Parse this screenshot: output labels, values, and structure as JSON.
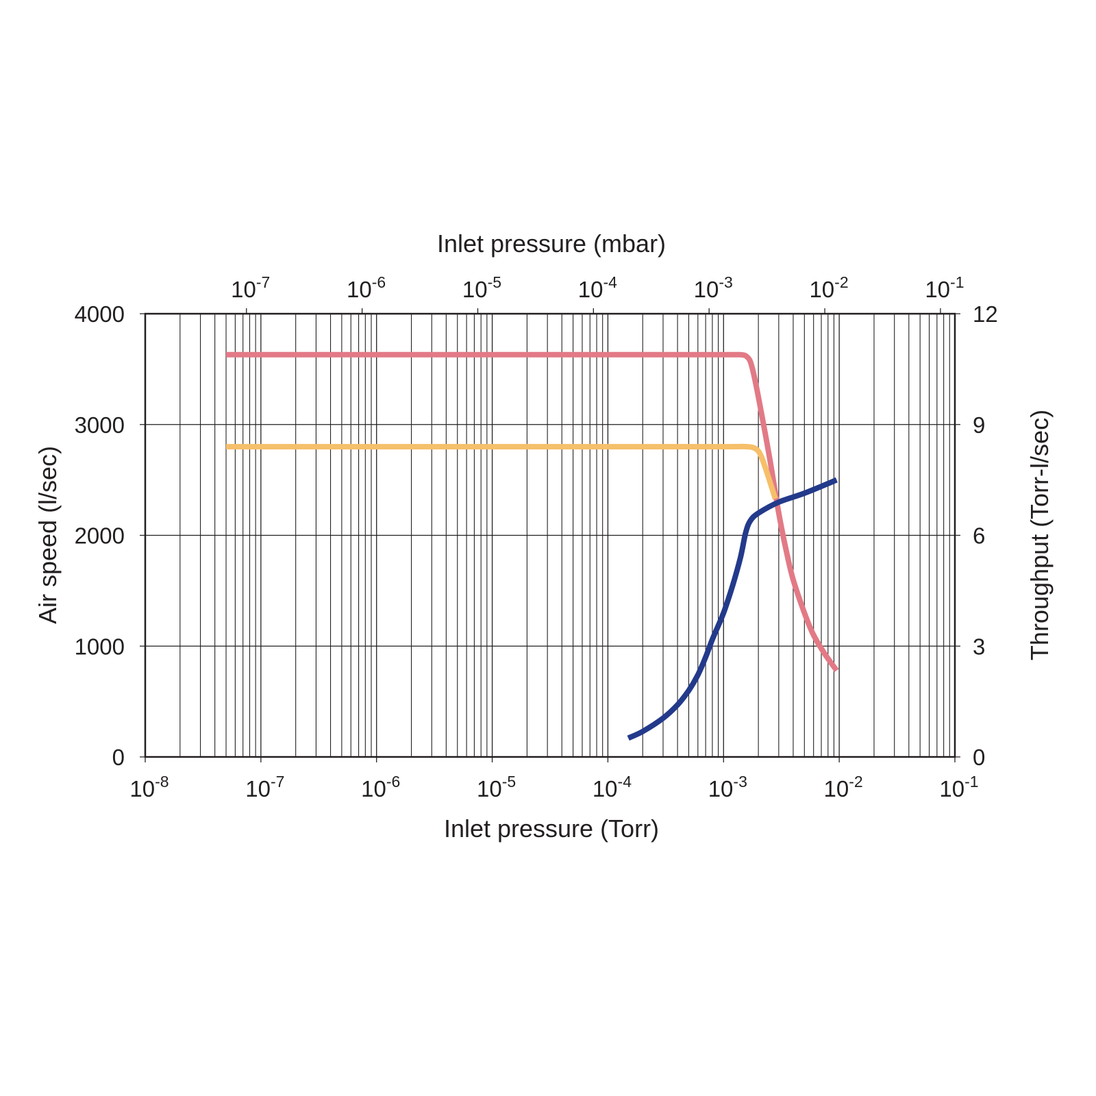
{
  "chart_data": {
    "type": "line",
    "title": "",
    "xlabel": "Inlet pressure (Torr)",
    "x2label": "Inlet pressure (mbar)",
    "ylabel": "Air speed (l/sec)",
    "y2label": "Throughput (Torr-l/sec)",
    "xscale": "log",
    "xlim": [
      1e-08,
      0.1
    ],
    "ylim": [
      0,
      4000
    ],
    "y2lim": [
      0,
      12
    ],
    "x2_torr_per_mbar": 0.750062,
    "grid": true,
    "legend": "none",
    "x_ticks": [
      {
        "value": 1e-08,
        "base": "10",
        "exp": "-8"
      },
      {
        "value": 1e-07,
        "base": "10",
        "exp": "-7"
      },
      {
        "value": 1e-06,
        "base": "10",
        "exp": "-6"
      },
      {
        "value": 1e-05,
        "base": "10",
        "exp": "-5"
      },
      {
        "value": 0.0001,
        "base": "10",
        "exp": "-4"
      },
      {
        "value": 0.001,
        "base": "10",
        "exp": "-3"
      },
      {
        "value": 0.01,
        "base": "10",
        "exp": "-2"
      },
      {
        "value": 0.1,
        "base": "10",
        "exp": "-1"
      }
    ],
    "x2_ticks": [
      {
        "value": 1e-07,
        "base": "10",
        "exp": "-7"
      },
      {
        "value": 1e-06,
        "base": "10",
        "exp": "-6"
      },
      {
        "value": 1e-05,
        "base": "10",
        "exp": "-5"
      },
      {
        "value": 0.0001,
        "base": "10",
        "exp": "-4"
      },
      {
        "value": 0.001,
        "base": "10",
        "exp": "-3"
      },
      {
        "value": 0.01,
        "base": "10",
        "exp": "-2"
      },
      {
        "value": 0.1,
        "base": "10",
        "exp": "-1"
      }
    ],
    "y_ticks": [
      "0",
      "1000",
      "2000",
      "3000",
      "4000"
    ],
    "y2_ticks": [
      "0",
      "3",
      "6",
      "9",
      "12"
    ],
    "series": [
      {
        "color": "#e27a86",
        "axis": "y",
        "x": [
          5e-08,
          1e-07,
          1e-06,
          1e-05,
          0.0001,
          0.001,
          0.0014,
          0.0016,
          0.00175,
          0.002,
          0.0025,
          0.003,
          0.0035,
          0.004,
          0.005,
          0.006,
          0.0075,
          0.0095
        ],
        "y": [
          3630,
          3630,
          3630,
          3630,
          3630,
          3630,
          3630,
          3610,
          3530,
          3250,
          2700,
          2200,
          1850,
          1600,
          1300,
          1100,
          930,
          780
        ]
      },
      {
        "color": "#f6bf6a",
        "axis": "y",
        "x": [
          5e-08,
          1e-07,
          1e-06,
          1e-05,
          0.0001,
          0.001,
          0.0016,
          0.0019,
          0.0021,
          0.0024,
          0.0028
        ],
        "y": [
          2800,
          2800,
          2800,
          2800,
          2800,
          2800,
          2800,
          2780,
          2720,
          2550,
          2330
        ]
      },
      {
        "color": "#233a8b",
        "axis": "y",
        "x": [
          0.00015,
          0.0002,
          0.0003,
          0.0004,
          0.0005,
          0.0006,
          0.0007,
          0.0008,
          0.001,
          0.0012,
          0.0014,
          0.00155,
          0.0017,
          0.002,
          0.003,
          0.005,
          0.0095
        ],
        "y": [
          170,
          230,
          350,
          470,
          600,
          740,
          900,
          1060,
          1300,
          1550,
          1800,
          2020,
          2130,
          2200,
          2300,
          2380,
          2500
        ]
      }
    ]
  }
}
